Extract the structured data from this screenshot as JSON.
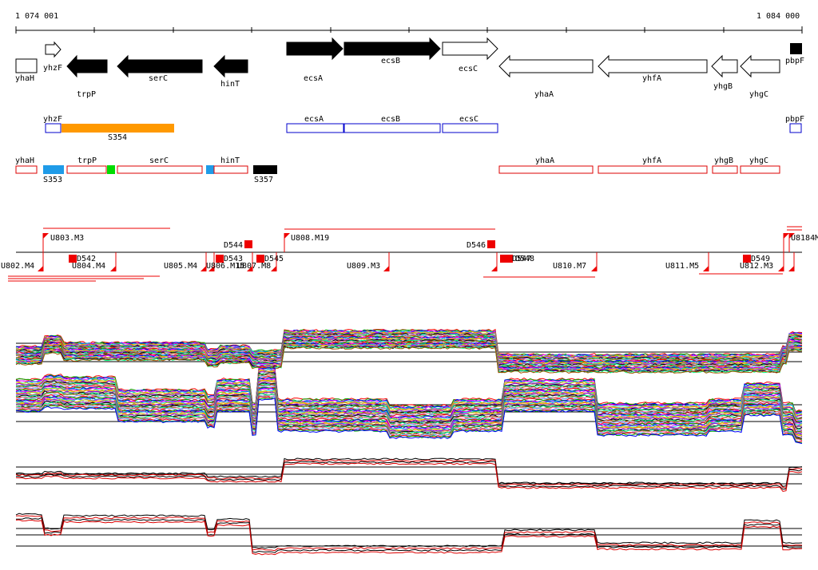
{
  "ruler": {
    "start_label": "1 074 001",
    "end_label": "1 084 000"
  },
  "palette": {
    "gene_filled": "#000000",
    "operon_blue": "#0000cc",
    "orange": "#ff9900",
    "cds_red": "#dd0000",
    "cyan": "#1f9be8",
    "green": "#00dd00",
    "marker_red": "#ee0000",
    "profile_red": "#dd0000"
  },
  "genes": [
    {
      "label": "yhaH"
    },
    {
      "label": "yhzF"
    },
    {
      "label": "trpP"
    },
    {
      "label": "serC"
    },
    {
      "label": "hinT"
    },
    {
      "label": "ecsA"
    },
    {
      "label": "ecsB"
    },
    {
      "label": "ecsC"
    },
    {
      "label": "yhaA"
    },
    {
      "label": "yhfA"
    },
    {
      "label": "yhgB"
    },
    {
      "label": "yhgC"
    },
    {
      "label": "pbpF"
    }
  ],
  "operon_track": [
    {
      "label": "yhzF"
    },
    {
      "label": "S354"
    },
    {
      "label": "ecsA"
    },
    {
      "label": "ecsB"
    },
    {
      "label": "ecsC"
    },
    {
      "label": "pbpF"
    }
  ],
  "cds_track": [
    {
      "label": "yhaH"
    },
    {
      "label": "S353"
    },
    {
      "label": "trpP"
    },
    {
      "label": "serC"
    },
    {
      "label": "hinT"
    },
    {
      "label": "S357"
    },
    {
      "label": "yhaA"
    },
    {
      "label": "yhfA"
    },
    {
      "label": "yhgB"
    },
    {
      "label": "yhgC"
    }
  ],
  "segments": [
    {
      "label": "U803.M3"
    },
    {
      "label": "U808.M19"
    },
    {
      "label": "D544"
    },
    {
      "label": "D546"
    },
    {
      "label": "U8184M"
    },
    {
      "label": "U802.M4"
    },
    {
      "label": "D542"
    },
    {
      "label": "U804.M4"
    },
    {
      "label": "U805.M4"
    },
    {
      "label": "U806.M15"
    },
    {
      "label": "D543"
    },
    {
      "label": "U807.M8"
    },
    {
      "label": "D545"
    },
    {
      "label": "U809.M3"
    },
    {
      "label": "D547"
    },
    {
      "label": "D548"
    },
    {
      "label": "U810.M7"
    },
    {
      "label": "U811.M5"
    },
    {
      "label": "U812.M3"
    },
    {
      "label": "D549"
    }
  ],
  "expression_panels": [
    {
      "name": "forward-profiles"
    },
    {
      "name": "reverse-profiles"
    },
    {
      "name": "forward-summary"
    },
    {
      "name": "reverse-summary"
    }
  ]
}
